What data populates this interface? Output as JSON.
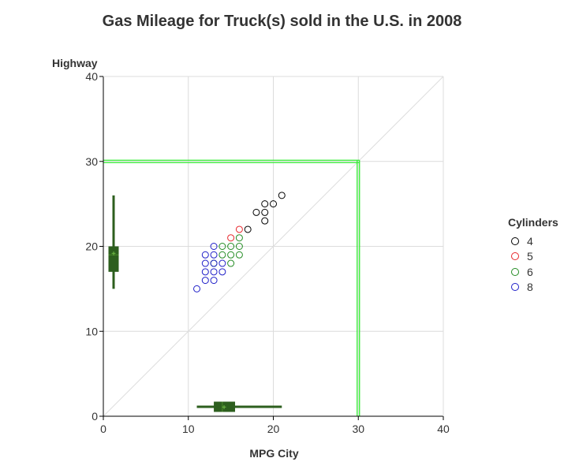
{
  "chart_data": {
    "type": "scatter",
    "title": "Gas Mileage for Truck(s) sold in the U.S. in 2008",
    "xlabel": "MPG City",
    "ylabel": "Highway",
    "xlim": [
      0,
      40
    ],
    "ylim": [
      0,
      40
    ],
    "xticks": [
      "0",
      "10",
      "20",
      "30",
      "40"
    ],
    "yticks": [
      "0",
      "10",
      "20",
      "30",
      "40"
    ],
    "grid": true,
    "legend": {
      "title": "Cylinders",
      "position": "right"
    },
    "series": [
      {
        "name": "4",
        "color": "#000000",
        "points": [
          [
            17,
            22
          ],
          [
            18,
            24
          ],
          [
            19,
            23
          ],
          [
            19,
            24
          ],
          [
            19,
            25
          ],
          [
            20,
            25
          ],
          [
            21,
            26
          ]
        ]
      },
      {
        "name": "5",
        "color": "#e8262b",
        "points": [
          [
            15,
            21
          ],
          [
            16,
            22
          ]
        ]
      },
      {
        "name": "6",
        "color": "#228b22",
        "points": [
          [
            13,
            18
          ],
          [
            14,
            19
          ],
          [
            14,
            20
          ],
          [
            15,
            18
          ],
          [
            15,
            19
          ],
          [
            15,
            20
          ],
          [
            16,
            19
          ],
          [
            16,
            20
          ],
          [
            16,
            21
          ]
        ]
      },
      {
        "name": "8",
        "color": "#1e1ec8",
        "points": [
          [
            11,
            15
          ],
          [
            12,
            16
          ],
          [
            12,
            17
          ],
          [
            12,
            18
          ],
          [
            12,
            19
          ],
          [
            13,
            16
          ],
          [
            13,
            17
          ],
          [
            13,
            18
          ],
          [
            13,
            19
          ],
          [
            13,
            20
          ],
          [
            14,
            17
          ],
          [
            14,
            18
          ]
        ]
      }
    ],
    "reference_lines": {
      "diagonal": {
        "from": [
          0,
          0
        ],
        "to": [
          40,
          40
        ],
        "color": "#dddddd"
      },
      "highway_30": {
        "value": 30,
        "color": "#33ee33"
      },
      "city_30": {
        "value": 30,
        "color": "#33ee33"
      }
    },
    "boxplots": {
      "city": {
        "min": 11,
        "q1": 13,
        "median": 14,
        "mean": 14.2,
        "q3": 15.5,
        "max": 21,
        "color": "#2d5f1e"
      },
      "highway": {
        "min": 15,
        "q1": 17,
        "median": 19,
        "mean": 19.2,
        "q3": 20,
        "max": 26,
        "color": "#2d5f1e"
      }
    }
  }
}
